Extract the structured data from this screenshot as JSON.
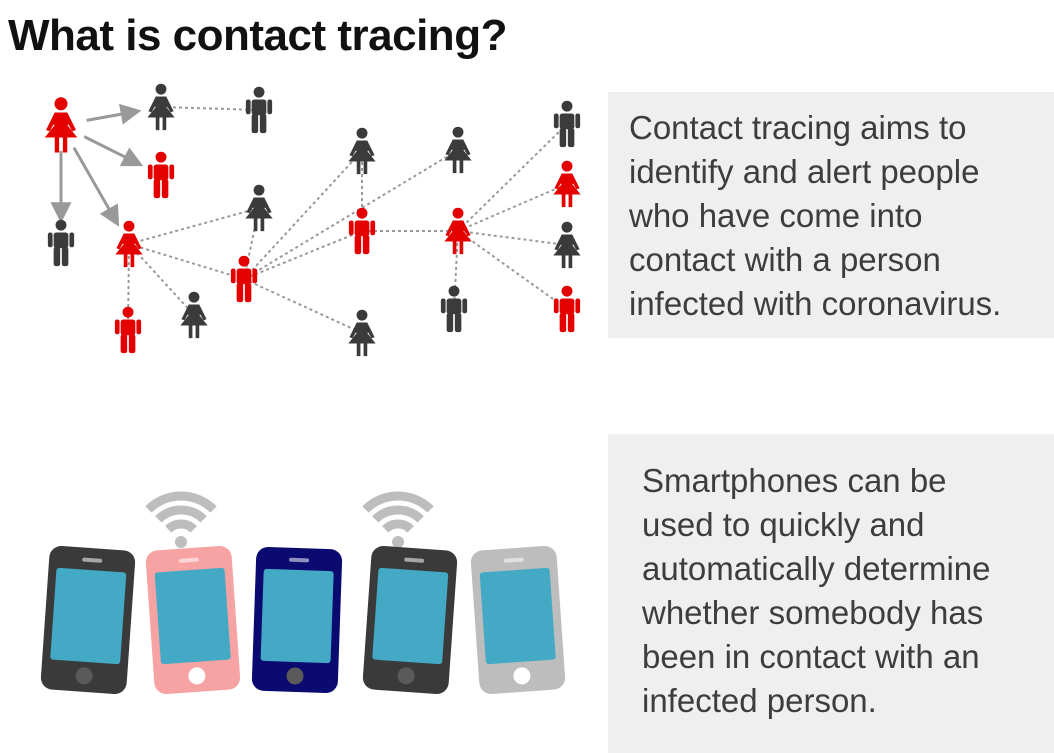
{
  "title": "What is contact tracing?",
  "tracing_text": {
    "lines": [
      "Contact tracing aims to",
      "identify and alert people",
      "who have come into",
      "contact with a person",
      "infected with coronavirus."
    ]
  },
  "smartphone_text": {
    "lines": [
      "Smartphones can be",
      "used to quickly and",
      "automatically determine",
      "whether somebody has",
      "been in contact with an",
      "infected person."
    ]
  },
  "colors": {
    "infected": "#e50000",
    "contact": "#3b3b3b",
    "arrow": "#999999",
    "dotted_link": "#9a9a9a",
    "panel_background": "#efefef",
    "wifi": "#bdbdbd",
    "screen": "#43a9c4",
    "phones": [
      "#3a3a3a",
      "#f7a3a3",
      "#0a0a70",
      "#3a3a3a",
      "#bdbdbd"
    ]
  },
  "network": {
    "people": [
      {
        "id": "p1",
        "status": "infected",
        "figure": "dress-icon"
      },
      {
        "id": "p2",
        "status": "contact",
        "figure": "dress-icon"
      },
      {
        "id": "p3",
        "status": "contact",
        "figure": "person-icon"
      },
      {
        "id": "p4",
        "status": "infected",
        "figure": "person-icon"
      },
      {
        "id": "p5",
        "status": "contact",
        "figure": "person-icon"
      },
      {
        "id": "p6",
        "status": "infected",
        "figure": "dress-icon"
      },
      {
        "id": "p7",
        "status": "infected",
        "figure": "person-icon"
      },
      {
        "id": "p8",
        "status": "contact",
        "figure": "dress-icon"
      },
      {
        "id": "p9",
        "status": "contact",
        "figure": "dress-icon"
      },
      {
        "id": "p10",
        "status": "infected",
        "figure": "person-icon"
      },
      {
        "id": "p11",
        "status": "contact",
        "figure": "dress-icon"
      },
      {
        "id": "p12",
        "status": "contact",
        "figure": "dress-icon"
      },
      {
        "id": "p13",
        "status": "infected",
        "figure": "person-icon"
      },
      {
        "id": "p14",
        "status": "contact",
        "figure": "dress-icon"
      },
      {
        "id": "p15",
        "status": "infected",
        "figure": "dress-icon"
      },
      {
        "id": "p16",
        "status": "contact",
        "figure": "person-icon"
      },
      {
        "id": "p17",
        "status": "contact",
        "figure": "person-icon"
      },
      {
        "id": "p18",
        "status": "infected",
        "figure": "dress-icon"
      },
      {
        "id": "p19",
        "status": "contact",
        "figure": "dress-icon"
      },
      {
        "id": "p20",
        "status": "infected",
        "figure": "person-icon"
      },
      {
        "id": "p21",
        "status": "contact",
        "figure": "dress-icon"
      }
    ],
    "arrows": [
      [
        "p1",
        "p2"
      ],
      [
        "p1",
        "p4"
      ],
      [
        "p1",
        "p5"
      ],
      [
        "p1",
        "p6"
      ]
    ],
    "links": [
      [
        "p2",
        "p3"
      ],
      [
        "p6",
        "p8"
      ],
      [
        "p6",
        "p10"
      ],
      [
        "p6",
        "p11"
      ],
      [
        "p6",
        "p7"
      ],
      [
        "p7",
        "p12"
      ],
      [
        "p7",
        "p8"
      ],
      [
        "p7",
        "p9"
      ],
      [
        "p7",
        "p13"
      ],
      [
        "p7",
        "p14"
      ],
      [
        "p13",
        "p9"
      ],
      [
        "p13",
        "p15"
      ],
      [
        "p15",
        "p16"
      ],
      [
        "p15",
        "p17"
      ],
      [
        "p15",
        "p18"
      ],
      [
        "p15",
        "p19"
      ],
      [
        "p15",
        "p20"
      ],
      [
        "p15",
        "p21"
      ]
    ]
  },
  "phones": [
    {
      "id": "ph1",
      "wifi": false
    },
    {
      "id": "ph2",
      "wifi": true
    },
    {
      "id": "ph3",
      "wifi": false
    },
    {
      "id": "ph4",
      "wifi": true
    },
    {
      "id": "ph5",
      "wifi": false
    }
  ]
}
